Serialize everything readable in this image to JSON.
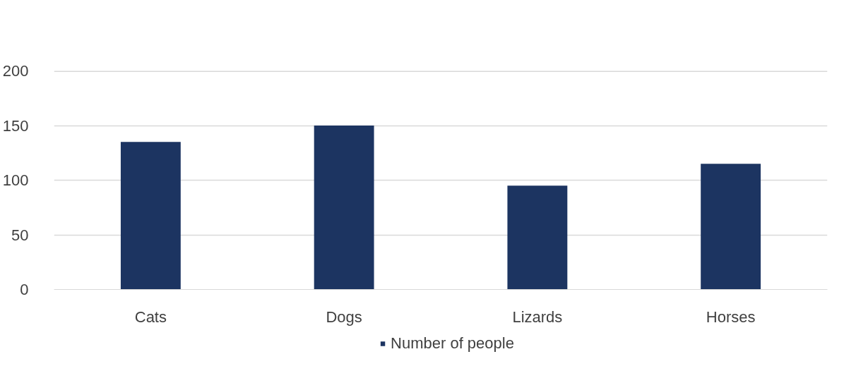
{
  "chart_data": {
    "type": "bar",
    "categories": [
      "Cats",
      "Dogs",
      "Lizards",
      "Horses"
    ],
    "series": [
      {
        "name": "Number of people",
        "color": "#1c3461",
        "values": [
          135,
          150,
          95,
          115
        ]
      }
    ],
    "ylim": [
      0,
      200
    ],
    "yticks": [
      0,
      50,
      100,
      150,
      200
    ],
    "grid": "y",
    "legend": "bottom"
  }
}
